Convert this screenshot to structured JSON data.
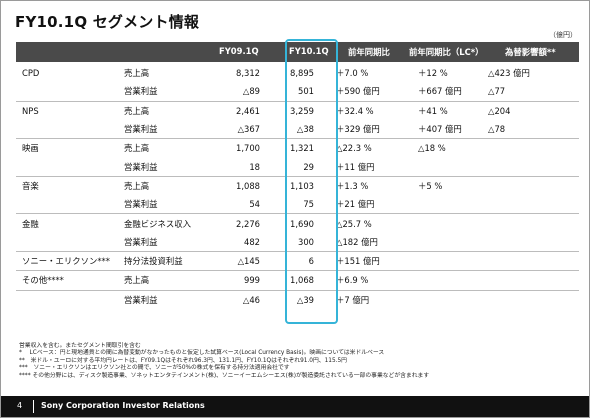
{
  "title": "FY10.1Q セグメント情報",
  "unit": "（億円）",
  "headers": [
    "FY09.1Q",
    "FY10.1Q",
    "前年同期比",
    "前年同期比（LC*）",
    "為替影響額**"
  ],
  "rows": [
    {
      "segment": "CPD",
      "item": "売上高",
      "fy09": "8,312",
      "fy10": "8,895",
      "yoy": "＋7.0 %",
      "lc": "＋12 %",
      "fx": "△423 億円"
    },
    {
      "segment": "",
      "item": "営業利益",
      "fy09": "△89",
      "fy10": "501",
      "yoy": "＋590 億円",
      "lc": "＋667 億円",
      "fx": "△77"
    },
    {
      "segment": "NPS",
      "item": "売上高",
      "fy09": "2,461",
      "fy10": "3,259",
      "yoy": "＋32.4 %",
      "lc": "＋41 %",
      "fx": "△204"
    },
    {
      "segment": "",
      "item": "営業利益",
      "fy09": "△367",
      "fy10": "△38",
      "yoy": "＋329 億円",
      "lc": "＋407 億円",
      "fx": "△78"
    },
    {
      "segment": "映画",
      "item": "売上高",
      "fy09": "1,700",
      "fy10": "1,321",
      "yoy": "△22.3 %",
      "lc": "△18 %",
      "fx": ""
    },
    {
      "segment": "",
      "item": "営業利益",
      "fy09": "18",
      "fy10": "29",
      "yoy": "＋11 億円",
      "lc": "",
      "fx": ""
    },
    {
      "segment": "音楽",
      "item": "売上高",
      "fy09": "1,088",
      "fy10": "1,103",
      "yoy": "＋1.3 %",
      "lc": "＋5 %",
      "fx": ""
    },
    {
      "segment": "",
      "item": "営業利益",
      "fy09": "54",
      "fy10": "75",
      "yoy": "＋21 億円",
      "lc": "",
      "fx": ""
    },
    {
      "segment": "金融",
      "item": "金融ビジネス収入",
      "fy09": "2,276",
      "fy10": "1,690",
      "yoy": "△25.7 %",
      "lc": "",
      "fx": ""
    },
    {
      "segment": "",
      "item": "営業利益",
      "fy09": "482",
      "fy10": "300",
      "yoy": "△182 億円",
      "lc": "",
      "fx": ""
    },
    {
      "segment": "ソニー・エリクソン***",
      "item": "持分法投資利益",
      "fy09": "△145",
      "fy10": "6",
      "yoy": "＋151 億円",
      "lc": "",
      "fx": ""
    },
    {
      "segment": "その他****",
      "item": "売上高",
      "fy09": "999",
      "fy10": "1,068",
      "yoy": "＋6.9 %",
      "lc": "",
      "fx": ""
    },
    {
      "segment": "",
      "item": "営業利益",
      "fy09": "△46",
      "fy10": "△39",
      "yoy": "＋7 億円",
      "lc": "",
      "fx": ""
    }
  ],
  "notes": [
    "営業収入を含む。またセグメント間取引を含む",
    "*　 LCベース：円と現地通貨との間に為替変動がなかったものと仮定した試算ベース(Local Currency Basis)。映画については米ドルベース",
    "**　米ドル・ユーロに対する平均円レートは、FY09.1Qはそれぞれ96.3円、131.1円、FY10.1Qはそれぞれ91.0円、115.5円",
    "***　ソニー・エリクソンはエリクソン社との間で、ソニーが50%の株式を保有する持分法適用会社です",
    "**** その他分野には、ディスク製造事業、ソネットエンタテインメント(株)、ソニーイーエムシーエス(株)が製造委託されている一部の事業などが含まれます"
  ],
  "footer": {
    "page": "4",
    "company": "Sony Corporation Investor Relations"
  }
}
